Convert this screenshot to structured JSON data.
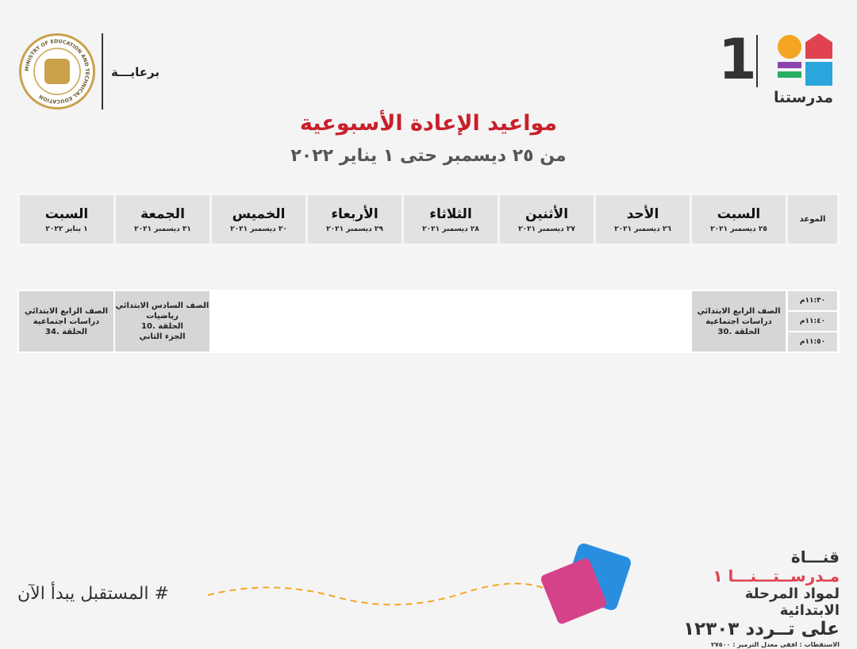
{
  "header": {
    "sponsor_label": "برعايـــة",
    "ministry_logo_text": "MINISTRY OF EDUCATION AND TECHNICAL EDUCATION",
    "brand_name": "مدرستنا",
    "brand_number": "1",
    "title": "مواعيد الإعادة الأسبوعية",
    "subtitle": "من ٢٥ ديسمبر حتى ١ يناير ٢٠٢٢"
  },
  "table": {
    "time_header": "الموعد",
    "days": [
      {
        "day": "السبت",
        "date": "٢٥ ديسمبر ٢٠٢١"
      },
      {
        "day": "الأحد",
        "date": "٢٦ ديسمبر ٢٠٢١"
      },
      {
        "day": "الأثنين",
        "date": "٢٧ ديسمبر ٢٠٢١"
      },
      {
        "day": "الثلاثاء",
        "date": "٢٨ ديسمبر ٢٠٢١"
      },
      {
        "day": "الأربعاء",
        "date": "٢٩ ديسمبر ٢٠٢١"
      },
      {
        "day": "الخميس",
        "date": "٣٠ ديسمبر ٢٠٢١"
      },
      {
        "day": "الجمعة",
        "date": "٣١ ديسمبر ٢٠٢١"
      },
      {
        "day": "السبت",
        "date": "١ يناير ٢٠٢٢"
      }
    ],
    "times": [
      "١١:٣٠م",
      "١١:٤٠م",
      "١١:٥٠م"
    ],
    "programs": {
      "sat1": [
        "الصف الرابع الابتدائي",
        "دراسات اجتماعية",
        "الحلقة .30"
      ],
      "fri": [
        "الصف السادس الابتدائي",
        "رياضيات",
        "الحلقة .10",
        "الجزء الثاني"
      ],
      "sat2": [
        "الصف الرابع الابتدائي",
        "دراسات اجتماعية",
        "الحلقة .34"
      ]
    }
  },
  "footer": {
    "hashtag": "# المستقبل يبدأ الآن",
    "channel_prefix": "قنـــاة",
    "channel_name": "مـدرســتـــنـــا ١",
    "line2": "لمواد المرحلة الابتدائية",
    "line3": "على تــردد ١٢٣٠٣",
    "reception": "الاستقطاب : افقى معدل الترميز : ٢٧٥٠٠"
  },
  "colors": {
    "title": "#c8202a",
    "accent": "#e0434f",
    "cell": "#e2e2e3"
  }
}
